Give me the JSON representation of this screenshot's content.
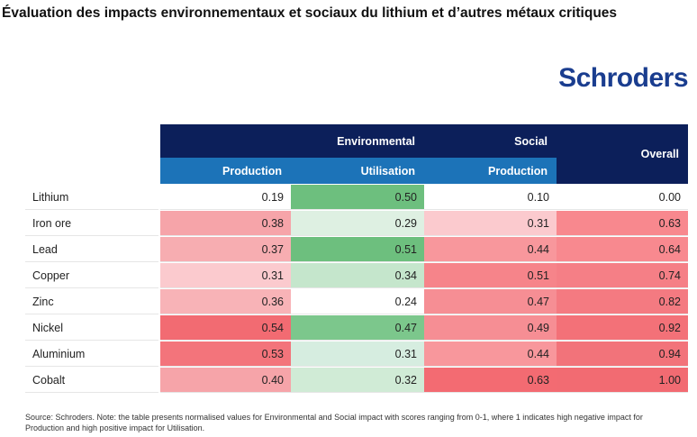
{
  "title": "Évaluation des impacts environnementaux et sociaux du lithium et d’autres métaux critiques",
  "logo": "Schroders",
  "chart_data": {
    "type": "table",
    "header_groups": [
      "Environmental",
      "Social",
      "Overall"
    ],
    "columns": [
      "Production",
      "Utilisation",
      "Production",
      "Overall"
    ],
    "rows": [
      {
        "label": "Lithium",
        "values": [
          0.19,
          0.5,
          0.1,
          0.0
        ],
        "display": [
          "0.19",
          "0.50",
          "0.10",
          "0.00"
        ]
      },
      {
        "label": "Iron ore",
        "values": [
          0.38,
          0.29,
          0.31,
          0.63
        ],
        "display": [
          "0.38",
          "0.29",
          "0.31",
          "0.63"
        ]
      },
      {
        "label": "Lead",
        "values": [
          0.37,
          0.51,
          0.44,
          0.64
        ],
        "display": [
          "0.37",
          "0.51",
          "0.44",
          "0.64"
        ]
      },
      {
        "label": "Copper",
        "values": [
          0.31,
          0.34,
          0.51,
          0.74
        ],
        "display": [
          "0.31",
          "0.34",
          "0.51",
          "0.74"
        ]
      },
      {
        "label": "Zinc",
        "values": [
          0.36,
          0.24,
          0.47,
          0.82
        ],
        "display": [
          "0.36",
          "0.24",
          "0.47",
          "0.82"
        ]
      },
      {
        "label": "Nickel",
        "values": [
          0.54,
          0.47,
          0.49,
          0.92
        ],
        "display": [
          "0.54",
          "0.47",
          "0.49",
          "0.92"
        ]
      },
      {
        "label": "Aluminium",
        "values": [
          0.53,
          0.31,
          0.44,
          0.94
        ],
        "display": [
          "0.53",
          "0.31",
          "0.44",
          "0.94"
        ]
      },
      {
        "label": "Cobalt",
        "values": [
          0.4,
          0.32,
          0.63,
          1.0
        ],
        "display": [
          "0.40",
          "0.32",
          "0.63",
          "1.00"
        ]
      }
    ],
    "cell_colors": [
      [
        "#ffffff",
        "#6dbf7e",
        "#ffffff",
        "#ffffff"
      ],
      [
        "#f6a4a9",
        "#def0e2",
        "#fbcace",
        "#f8888e"
      ],
      [
        "#f7adb1",
        "#6dbf7e",
        "#f8979c",
        "#f8898f"
      ],
      [
        "#fbcace",
        "#c5e6cc",
        "#f6848a",
        "#f57f86"
      ],
      [
        "#f8b3b7",
        "#ffffff",
        "#f68e94",
        "#f47a81"
      ],
      [
        "#f26b72",
        "#7cc78c",
        "#f68e94",
        "#f37178"
      ],
      [
        "#f3747b",
        "#d6ede0",
        "#f8979c",
        "#f2737a"
      ],
      [
        "#f6a4a9",
        "#d0ebd6",
        "#f36b72",
        "#f26b72"
      ]
    ]
  },
  "source_note": "Source: Schroders. Note: the table presents normalised values for Environmental and Social impact with scores ranging from 0-1, where 1 indicates high negative impact for Production and high positive impact for Utilisation."
}
